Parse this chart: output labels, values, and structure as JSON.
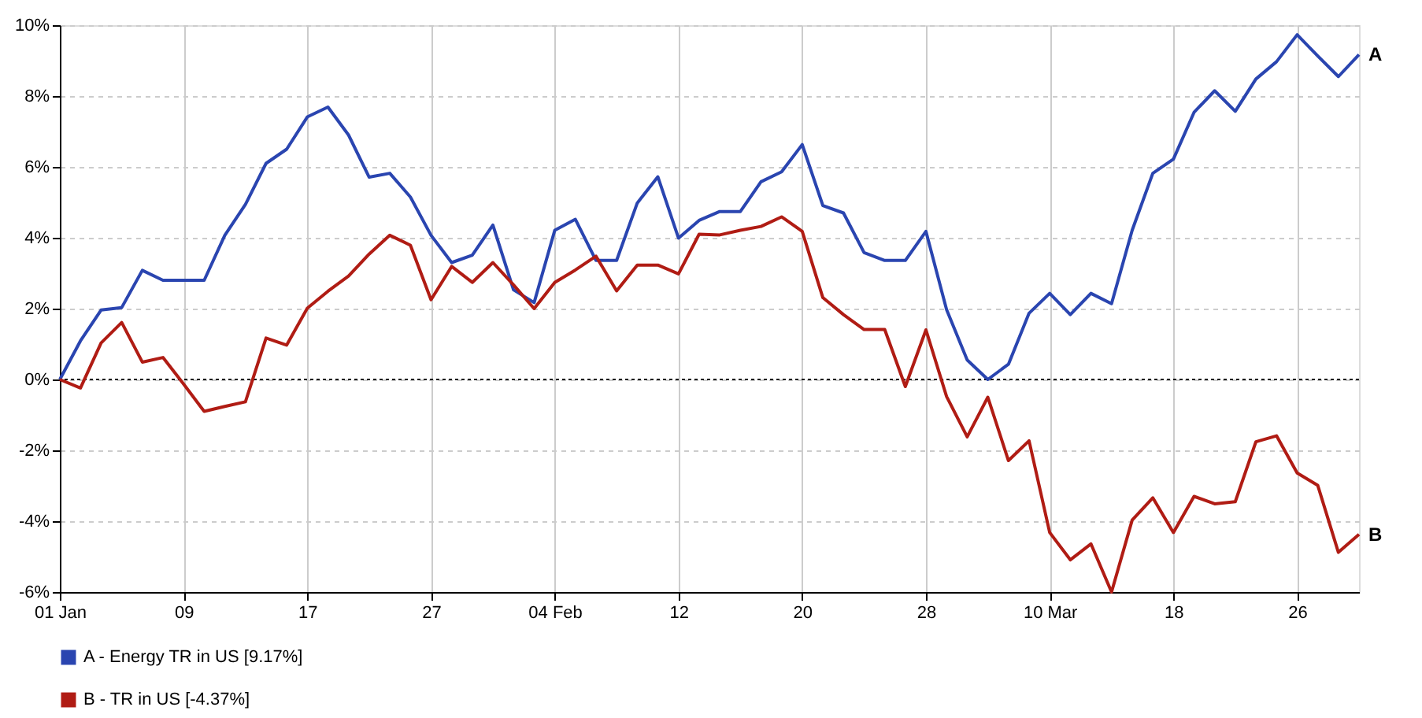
{
  "chart_data": {
    "type": "line",
    "categories": [
      "01 Jan",
      null,
      null,
      null,
      null,
      null,
      "09",
      null,
      null,
      null,
      null,
      null,
      "17",
      null,
      null,
      null,
      null,
      null,
      "27",
      null,
      null,
      null,
      null,
      null,
      "04 Feb",
      null,
      null,
      null,
      null,
      null,
      "12",
      null,
      null,
      null,
      null,
      null,
      "20",
      null,
      null,
      null,
      null,
      null,
      "28",
      null,
      null,
      null,
      null,
      null,
      "10 Mar",
      null,
      null,
      null,
      null,
      null,
      "18",
      null,
      null,
      null,
      null,
      null,
      "26",
      null,
      null,
      null
    ],
    "series": [
      {
        "name": "A - Energy TR in US [9.17%]",
        "color": "#2a45b0",
        "values": [
          0,
          1.09,
          1.96,
          2.03,
          3.08,
          2.8,
          2.8,
          2.8,
          4.07,
          4.94,
          6.1,
          6.5,
          7.41,
          7.69,
          6.9,
          5.71,
          5.82,
          5.15,
          4.07,
          3.3,
          3.51,
          4.36,
          2.53,
          2.17,
          4.21,
          4.52,
          3.36,
          3.36,
          4.98,
          5.72,
          3.99,
          4.49,
          4.74,
          4.74,
          5.58,
          5.86,
          6.63,
          4.91,
          4.7,
          3.58,
          3.36,
          3.36,
          4.18,
          1.97,
          0.55,
          0.0,
          0.43,
          1.87,
          2.43,
          1.83,
          2.43,
          2.14,
          4.21,
          5.82,
          6.22,
          7.54,
          8.15,
          7.57,
          8.48,
          8.97,
          9.73,
          9.13,
          8.55,
          9.17
        ]
      },
      {
        "name": "B - TR in US [-4.37%]",
        "color": "#b01c14",
        "values": [
          0,
          -0.24,
          1.03,
          1.61,
          0.49,
          0.62,
          -0.13,
          -0.9,
          -0.76,
          -0.63,
          1.17,
          0.97,
          2.01,
          2.49,
          2.92,
          3.54,
          4.07,
          3.79,
          2.25,
          3.19,
          2.74,
          3.3,
          2.67,
          2.0,
          2.74,
          3.09,
          3.48,
          2.5,
          3.23,
          3.23,
          2.98,
          4.1,
          4.08,
          4.21,
          4.32,
          4.59,
          4.18,
          2.31,
          1.83,
          1.41,
          1.41,
          -0.2,
          1.4,
          -0.48,
          -1.62,
          -0.5,
          -2.29,
          -1.73,
          -4.32,
          -5.09,
          -4.64,
          -6.0,
          -3.97,
          -3.34,
          -4.32,
          -3.3,
          -3.51,
          -3.45,
          -1.76,
          -1.59,
          -2.64,
          -2.99,
          -4.88,
          -4.37
        ]
      }
    ],
    "annotations": [
      "A",
      "B"
    ],
    "ylim": [
      -6,
      10
    ],
    "yticks": [
      {
        "value": -6,
        "label": "-6%"
      },
      {
        "value": -4,
        "label": "-4%"
      },
      {
        "value": -2,
        "label": "-2%"
      },
      {
        "value": 0,
        "label": "0%"
      },
      {
        "value": 2,
        "label": "2%"
      },
      {
        "value": 4,
        "label": "4%"
      },
      {
        "value": 6,
        "label": "6%"
      },
      {
        "value": 8,
        "label": "8%"
      },
      {
        "value": 10,
        "label": "10%"
      }
    ],
    "ref_lines": [
      {
        "axis": "y",
        "value": 0,
        "color": "#000000",
        "line_style": "dotted"
      }
    ],
    "grid": true,
    "legend": "bottom",
    "marker": "none",
    "line_style": "solid"
  }
}
